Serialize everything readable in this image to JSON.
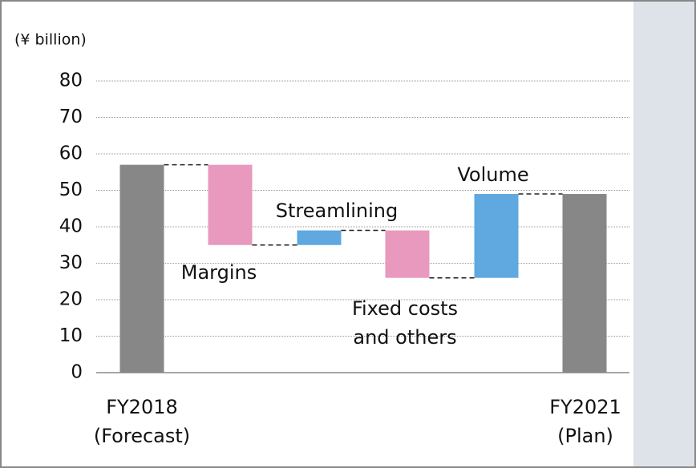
{
  "chart_data": {
    "type": "waterfall",
    "y_label": "(¥ billion)",
    "categories": [
      "FY2018\n(Forecast)",
      "Margins",
      "Streamlining",
      "Fixed costs\nand others",
      "Volume",
      "FY2021\n(Plan)"
    ],
    "values": [
      57,
      -22,
      4,
      -13,
      23,
      49
    ],
    "is_total": [
      true,
      false,
      false,
      false,
      false,
      true
    ],
    "colors": {
      "total": "#878787",
      "decrease": "#e899bd",
      "increase": "#5fa8e0"
    },
    "ylim": [
      0,
      80
    ],
    "yticks": [
      0,
      10,
      20,
      30,
      40,
      50,
      60,
      70,
      80
    ],
    "grid": true
  }
}
